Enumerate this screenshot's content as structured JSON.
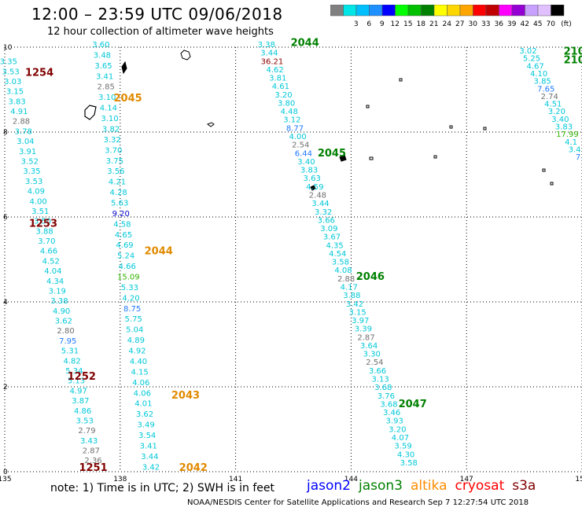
{
  "title": "12:00 – 23:59 UTC 09/06/2018",
  "subtitle": "12 hour collection of altimeter wave heights",
  "colorbar": {
    "unit": "(ft)",
    "bins": [
      {
        "color": "#808080",
        "label": ""
      },
      {
        "color": "#00e5e5",
        "label": "3"
      },
      {
        "color": "#00bfff",
        "label": "6"
      },
      {
        "color": "#1e90ff",
        "label": "9"
      },
      {
        "color": "#0000ff",
        "label": "12"
      },
      {
        "color": "#00ff00",
        "label": "15"
      },
      {
        "color": "#00c000",
        "label": "18"
      },
      {
        "color": "#008000",
        "label": "21"
      },
      {
        "color": "#ffff00",
        "label": "24"
      },
      {
        "color": "#ffd700",
        "label": "27"
      },
      {
        "color": "#ffa500",
        "label": "30"
      },
      {
        "color": "#ff0000",
        "label": "33"
      },
      {
        "color": "#c00000",
        "label": "36"
      },
      {
        "color": "#ff00ff",
        "label": "39"
      },
      {
        "color": "#9400d3",
        "label": "42"
      },
      {
        "color": "#c8a0ff",
        "label": "45"
      },
      {
        "color": "#e0c0ff",
        "label": "70"
      },
      {
        "color": "#000000",
        "label": ""
      }
    ]
  },
  "axes": {
    "x_ticks": [
      "135",
      "138",
      "141",
      "144",
      "147",
      "150"
    ],
    "y_ticks": [
      "10",
      "8",
      "6",
      "4",
      "2",
      "0"
    ]
  },
  "tracks": [
    {
      "name": "track-a",
      "pass_times": [
        {
          "t": "1254",
          "lat": 9.32,
          "lon": 135.9
        },
        {
          "t": "1253",
          "lat": 5.77,
          "lon": 136.0
        },
        {
          "t": "1252",
          "lat": 2.17,
          "lon": 137.0
        },
        {
          "t": "1251",
          "lat": 0.02,
          "lon": 137.3
        }
      ],
      "pass_color": "#800000",
      "start_lat": 9.6,
      "start_lon": 135.1,
      "end_lat": 0.2,
      "end_lon": 137.3,
      "values": [
        "3.35",
        "3.53",
        "3.03",
        "3.15",
        "3.83",
        "4.91",
        "2.88",
        "3.78",
        "3.04",
        "3.91",
        "3.52",
        "3.35",
        "3.53",
        "4.09",
        "4.00",
        "3.51",
        "3.50",
        "3.88",
        "3.70",
        "4.66",
        "4.52",
        "4.04",
        "4.34",
        "3.19",
        "3.38",
        "4.90",
        "3.62",
        "2.80",
        "7.95",
        "5.31",
        "4.82",
        "5.34",
        "5.13",
        "4.97",
        "3.87",
        "4.86",
        "3.53",
        "2.79",
        "3.43",
        "2.87",
        "2.36"
      ]
    },
    {
      "name": "track-b",
      "pass_times": [
        {
          "t": "2045",
          "lat": 8.72,
          "lon": 138.2
        },
        {
          "t": "2044",
          "lat": 5.12,
          "lon": 139.0
        },
        {
          "t": "2043",
          "lat": 1.72,
          "lon": 139.7
        },
        {
          "t": "2042",
          "lat": 0.02,
          "lon": 139.9
        }
      ],
      "pass_color": "#e08a00",
      "start_lat": 10.0,
      "start_lon": 137.5,
      "end_lat": 0.05,
      "end_lon": 138.8,
      "values": [
        "3.60",
        "3.48",
        "3.65",
        "3.41",
        "2.85",
        "3.10",
        "4.14",
        "3.10",
        "3.82",
        "3.32",
        "3.70",
        "3.75",
        "3.56",
        "4.21",
        "4.28",
        "5.63",
        "9.20",
        "4.58",
        "4.65",
        "4.69",
        "5.24",
        "4.66",
        "15.09",
        "5.33",
        "4.20",
        "8.75",
        "5.75",
        "5.04",
        "4.89",
        "4.92",
        "4.40",
        "4.15",
        "4.06",
        "4.06",
        "4.01",
        "3.62",
        "3.49",
        "3.54",
        "3.41",
        "3.44",
        "3.42"
      ]
    },
    {
      "name": "track-c",
      "pass_times": [
        {
          "t": "2044",
          "lat": 10.03,
          "lon": 142.8
        },
        {
          "t": "2045",
          "lat": 7.43,
          "lon": 143.5
        },
        {
          "t": "2046",
          "lat": 4.52,
          "lon": 144.5
        },
        {
          "t": "2047",
          "lat": 1.52,
          "lon": 145.6
        }
      ],
      "pass_color": "#008000",
      "start_lat": 10.0,
      "start_lon": 141.8,
      "end_lat": 0.15,
      "end_lon": 145.5,
      "values": [
        "3.38",
        "3.44",
        "36.21",
        "4.62",
        "3.81",
        "4.61",
        "3.20",
        "3.80",
        "4.48",
        "3.12",
        "8.77",
        "4.00",
        "2.54",
        "6.44",
        "3.40",
        "3.83",
        "3.63",
        "4.59",
        "2.48",
        "3.44",
        "3.32",
        "3.66",
        "3.09",
        "3.67",
        "4.35",
        "4.54",
        "3.58",
        "4.08",
        "2.88",
        "4.17",
        "3.88",
        "3.42",
        "3.15",
        "3.97",
        "3.39",
        "2.87",
        "3.64",
        "3.30",
        "2.54",
        "3.66",
        "3.13",
        "3.68",
        "3.76",
        "3.68",
        "3.46",
        "3.93",
        "3.20",
        "4.07",
        "3.59",
        "4.30",
        "3.58"
      ]
    },
    {
      "name": "track-d",
      "pass_times": [
        {
          "t": "210",
          "lat": 9.82,
          "lon": 149.8
        },
        {
          "t": "210",
          "lat": 9.62,
          "lon": 149.8
        }
      ],
      "pass_color": "#008000",
      "start_lat": 9.85,
      "start_lon": 148.6,
      "end_lat": 7.35,
      "end_lon": 149.9,
      "values": [
        "3.02",
        "5.25",
        "4.67",
        "4.10",
        "3.85",
        "7.65",
        "2.74",
        "4.51",
        "3.20",
        "3.40",
        "3.83",
        "17.99",
        "4.1",
        "3.4",
        "7"
      ]
    }
  ],
  "footer_note": "note:  1) Time is in UTC;  2) SWH is in feet",
  "satellites": [
    {
      "name": "jason2",
      "color": "#0000ff"
    },
    {
      "name": "jason3",
      "color": "#008000"
    },
    {
      "name": "altika",
      "color": "#ff8c00"
    },
    {
      "name": "cryosat",
      "color": "#ff0000"
    },
    {
      "name": "s3a",
      "color": "#800000"
    }
  ],
  "credit": "NOAA/NESDIS Center for Satellite Applications and Research    Sep  7 12:27:54 UTC 2018"
}
